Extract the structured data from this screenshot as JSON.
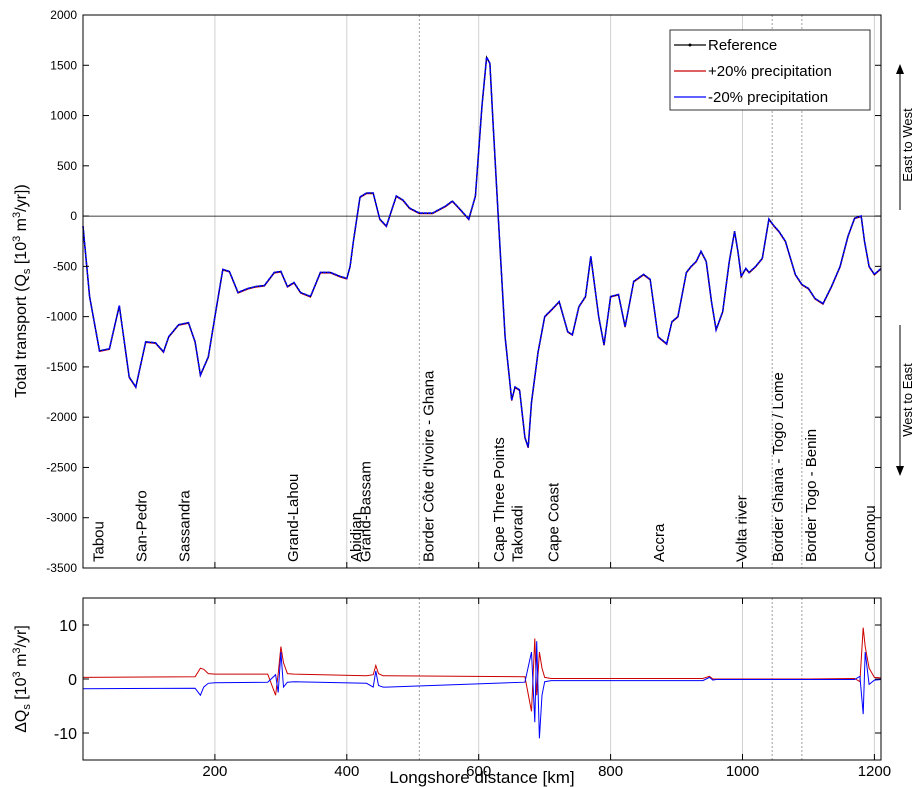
{
  "chart_data": [
    {
      "type": "line",
      "ylabel_main": "Total transport (Q",
      "ylabel_sub": "s",
      "ylabel_rest": " [10",
      "ylabel_sup": "3",
      "ylabel_tail": " m",
      "ylabel_sup2": "3",
      "ylabel_end": "/yr])",
      "xlim": [
        0,
        1210
      ],
      "ylim": [
        -3500,
        2000
      ],
      "yticks": [
        "2000",
        "1500",
        "1000",
        "500",
        "0",
        "-500",
        "-1000",
        "-1500",
        "-2000",
        "-2500",
        "-3000",
        "-3500"
      ],
      "ytick_values": [
        2000,
        1500,
        1000,
        500,
        0,
        -500,
        -1000,
        -1500,
        -2000,
        -2500,
        -3000,
        -3500
      ],
      "grid_x": [
        200,
        400,
        600,
        800,
        1000,
        1200
      ],
      "dotted_x": [
        510,
        1045,
        1090
      ],
      "direction_top": "East to West",
      "direction_bottom": "West to East",
      "legend": {
        "position": "top-right",
        "entries": [
          "Reference",
          "+20% precipitation",
          "-20% precipitation"
        ]
      },
      "locations": [
        {
          "name": "Tabou",
          "x": 10
        },
        {
          "name": "San-Pedro",
          "x": 75
        },
        {
          "name": "Sassandra",
          "x": 140
        },
        {
          "name": "Grand-Lahou",
          "x": 305
        },
        {
          "name": "Abidjan",
          "x": 400
        },
        {
          "name": "Grand-Bassam",
          "x": 415
        },
        {
          "name": "Border Côte d'Ivoire - Ghana",
          "x": 510
        },
        {
          "name": "Cape Three Points",
          "x": 617
        },
        {
          "name": "Takoradi",
          "x": 645
        },
        {
          "name": "Cape Coast",
          "x": 700
        },
        {
          "name": "Accra",
          "x": 860
        },
        {
          "name": "Volta river",
          "x": 985
        },
        {
          "name": "Border Ghana - Togo / Lome",
          "x": 1040
        },
        {
          "name": "Border Togo - Benin",
          "x": 1090
        },
        {
          "name": "Cotonou",
          "x": 1180
        }
      ],
      "series": [
        {
          "name": "Reference",
          "color": "#000000",
          "x": [
            0,
            10,
            25,
            40,
            55,
            70,
            80,
            95,
            110,
            122,
            130,
            145,
            160,
            170,
            178,
            190,
            200,
            212,
            222,
            235,
            250,
            262,
            275,
            290,
            300,
            310,
            320,
            330,
            345,
            360,
            375,
            390,
            400,
            405,
            410,
            420,
            430,
            440,
            450,
            460,
            475,
            485,
            495,
            510,
            520,
            530,
            550,
            560,
            570,
            585,
            595,
            605,
            612,
            617,
            622,
            630,
            640,
            650,
            655,
            662,
            670,
            675,
            680,
            690,
            700,
            712,
            722,
            735,
            742,
            752,
            762,
            770,
            782,
            790,
            800,
            812,
            822,
            835,
            850,
            860,
            872,
            885,
            893,
            902,
            915,
            922,
            930,
            937,
            945,
            953,
            960,
            970,
            980,
            988,
            993,
            998,
            1005,
            1010,
            1015,
            1020,
            1030,
            1040,
            1048,
            1055,
            1065,
            1080,
            1090,
            1100,
            1110,
            1122,
            1135,
            1148,
            1160,
            1170,
            1180,
            1185,
            1192,
            1200,
            1210
          ],
          "y": [
            -100,
            -800,
            -1340,
            -1320,
            -890,
            -1600,
            -1700,
            -1250,
            -1260,
            -1350,
            -1200,
            -1080,
            -1060,
            -1250,
            -1580,
            -1400,
            -1000,
            -530,
            -550,
            -760,
            -720,
            -700,
            -690,
            -560,
            -550,
            -700,
            -660,
            -760,
            -800,
            -560,
            -560,
            -600,
            -620,
            -500,
            -250,
            190,
            230,
            230,
            -30,
            -100,
            200,
            160,
            80,
            30,
            30,
            30,
            100,
            150,
            80,
            -30,
            200,
            1100,
            1580,
            1520,
            900,
            -50,
            -1200,
            -1830,
            -1700,
            -1730,
            -2200,
            -2300,
            -1850,
            -1350,
            -1000,
            -920,
            -850,
            -1150,
            -1180,
            -900,
            -800,
            -400,
            -1000,
            -1280,
            -800,
            -780,
            -1100,
            -650,
            -580,
            -630,
            -1200,
            -1270,
            -1050,
            -1000,
            -560,
            -500,
            -450,
            -350,
            -450,
            -850,
            -1130,
            -950,
            -450,
            -150,
            -350,
            -600,
            -520,
            -560,
            -530,
            -500,
            -420,
            -30,
            -100,
            -150,
            -250,
            -580,
            -680,
            -720,
            -820,
            -870,
            -700,
            -500,
            -200,
            -20,
            0,
            -250,
            -500,
            -580,
            -520
          ]
        },
        {
          "name": "+20% precipitation",
          "color": "#cc0000"
        },
        {
          "name": "-20% precipitation",
          "color": "#0000ff"
        }
      ]
    },
    {
      "type": "line",
      "ylabel_pre": "ΔQ",
      "ylabel_sub": "s",
      "ylabel_rest": " [10",
      "ylabel_sup": "3",
      "ylabel_tail": " m",
      "ylabel_sup2": "3",
      "ylabel_end": "/yr]",
      "xlabel": "Longshore distance [km]",
      "xlim": [
        0,
        1210
      ],
      "ylim": [
        -15,
        15
      ],
      "yticks": [
        "10",
        "0",
        "-10"
      ],
      "ytick_values": [
        10,
        0,
        -10
      ],
      "xticks": [
        "200",
        "400",
        "600",
        "800",
        "1000",
        "1200"
      ],
      "xtick_values": [
        200,
        400,
        600,
        800,
        1000,
        1200
      ],
      "series": [
        {
          "name": "+20% precipitation",
          "color": "#cc0000",
          "x": [
            0,
            170,
            178,
            183,
            190,
            200,
            280,
            292,
            296,
            300,
            304,
            310,
            320,
            430,
            440,
            444,
            448,
            455,
            460,
            670,
            680,
            685,
            688,
            692,
            696,
            700,
            710,
            940,
            950,
            955,
            960,
            1100,
            1170,
            1178,
            1183,
            1186,
            1192,
            1200,
            1210
          ],
          "y": [
            0.3,
            0.4,
            2.0,
            1.8,
            1.0,
            0.9,
            0.9,
            -3.0,
            1.0,
            6.0,
            3.0,
            1.0,
            0.9,
            0.6,
            0.8,
            2.5,
            1.0,
            0.6,
            0.6,
            0.4,
            -6.0,
            7.5,
            -3.0,
            5.0,
            2.0,
            0.3,
            0.1,
            0.1,
            0.5,
            0.0,
            0.0,
            0.0,
            0.1,
            -0.5,
            9.5,
            6.0,
            2.0,
            0.3,
            0.2
          ]
        },
        {
          "name": "-20% precipitation",
          "color": "#0000ff",
          "x": [
            0,
            170,
            178,
            183,
            190,
            200,
            280,
            292,
            296,
            300,
            304,
            310,
            320,
            430,
            440,
            444,
            448,
            455,
            460,
            670,
            680,
            685,
            688,
            692,
            696,
            700,
            710,
            940,
            950,
            955,
            960,
            1100,
            1170,
            1178,
            1183,
            1186,
            1192,
            1200,
            1210
          ],
          "y": [
            -1.8,
            -1.7,
            -3.0,
            -1.5,
            -0.8,
            -0.7,
            -0.6,
            0.8,
            -2.5,
            5.0,
            -1.5,
            -0.6,
            -0.5,
            -0.8,
            -1.5,
            1.5,
            -1.2,
            -1.5,
            -1.5,
            -0.6,
            5.0,
            -8.0,
            7.0,
            -11.0,
            -3.0,
            -0.5,
            -0.3,
            -0.3,
            0.3,
            -0.2,
            -0.1,
            -0.1,
            -0.1,
            0.5,
            -6.5,
            5.0,
            -1.0,
            -0.2,
            -0.1
          ]
        }
      ]
    }
  ]
}
